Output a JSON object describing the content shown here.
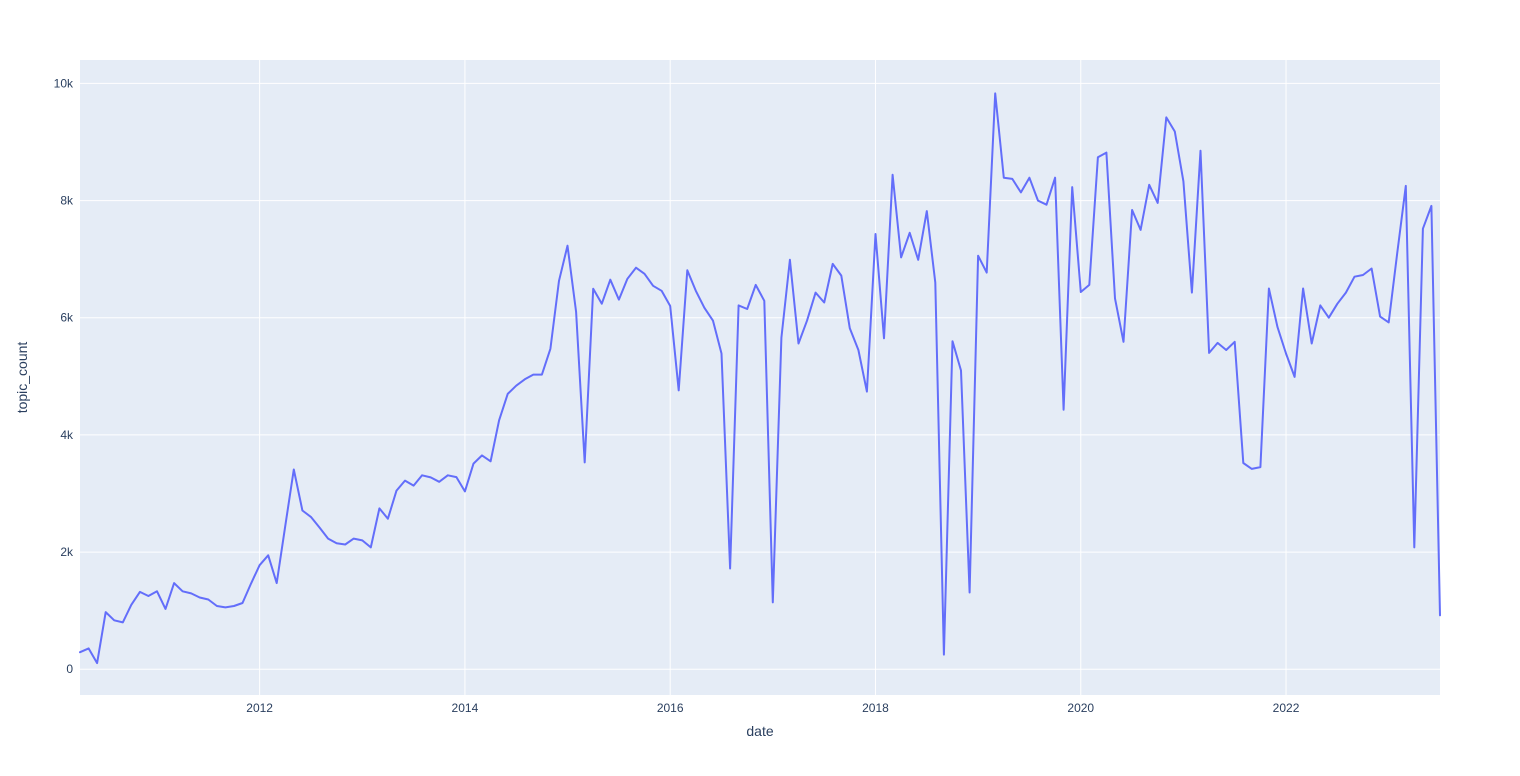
{
  "page": {
    "background_color": "#ffffff"
  },
  "chart_data": {
    "type": "line",
    "title": "",
    "xlabel": "date",
    "ylabel": "topic_count",
    "legend": "none",
    "grid": "on",
    "plot_bg_color": "#e5ecf6",
    "grid_color": "#ffffff",
    "line_color": "#636efa",
    "text_color": "#2a3f5f",
    "line_width": 2,
    "x_axis": {
      "tick_years": [
        2012,
        2014,
        2016,
        2018,
        2020,
        2022
      ],
      "tick_labels": [
        "2012",
        "2014",
        "2016",
        "2018",
        "2020",
        "2022"
      ],
      "range_decimal_years": [
        2010.25,
        2023.5
      ]
    },
    "y_axis": {
      "tick_values": [
        0,
        2000,
        4000,
        6000,
        8000,
        10000
      ],
      "tick_labels": [
        "0",
        "2k",
        "4k",
        "6k",
        "8k",
        "10k"
      ],
      "range": [
        -440,
        10400
      ]
    },
    "cadence": "monthly",
    "x_start": "2010-04",
    "x_end": "2023-07",
    "series_by_year": [
      {
        "year": 2010,
        "first_month": 4,
        "values": [
          290,
          355,
          105,
          975,
          835,
          800,
          1100,
          1320,
          1250
        ]
      },
      {
        "year": 2011,
        "first_month": 1,
        "values": [
          1330,
          1030,
          1470,
          1330,
          1295,
          1225,
          1190,
          1080,
          1055,
          1080,
          1130,
          1465
        ]
      },
      {
        "year": 2012,
        "first_month": 1,
        "values": [
          1775,
          1945,
          1470,
          2450,
          3410,
          2710,
          2600,
          2420,
          2230,
          2150,
          2130,
          2230
        ]
      },
      {
        "year": 2013,
        "first_month": 1,
        "values": [
          2200,
          2080,
          2745,
          2570,
          3050,
          3220,
          3135,
          3310,
          3275,
          3200,
          3310,
          3280
        ]
      },
      {
        "year": 2014,
        "first_month": 1,
        "values": [
          3035,
          3510,
          3650,
          3550,
          4250,
          4700,
          4840,
          4950,
          5030,
          5030,
          5470,
          6630
        ]
      },
      {
        "year": 2015,
        "first_month": 1,
        "values": [
          7230,
          6100,
          3530,
          6495,
          6240,
          6650,
          6310,
          6665,
          6855,
          6750,
          6545,
          6460
        ]
      },
      {
        "year": 2016,
        "first_month": 1,
        "values": [
          6200,
          4760,
          6810,
          6460,
          6170,
          5950,
          5390,
          1720,
          6210,
          6150,
          6560,
          6290
        ]
      },
      {
        "year": 2017,
        "first_month": 1,
        "values": [
          1140,
          5660,
          6990,
          5560,
          5950,
          6430,
          6260,
          6920,
          6720,
          5820,
          5450,
          4740
        ]
      },
      {
        "year": 2018,
        "first_month": 1,
        "values": [
          7430,
          5650,
          8440,
          7030,
          7450,
          6990,
          7820,
          6600,
          250,
          5600,
          5100,
          1310
        ]
      },
      {
        "year": 2019,
        "first_month": 1,
        "values": [
          7060,
          6770,
          9830,
          8390,
          8370,
          8140,
          8390,
          8000,
          7930,
          8390,
          4430,
          8230
        ]
      },
      {
        "year": 2020,
        "first_month": 1,
        "values": [
          6440,
          6560,
          8740,
          8820,
          6330,
          5590,
          7840,
          7500,
          8270,
          7960,
          9420,
          9180
        ]
      },
      {
        "year": 2021,
        "first_month": 1,
        "values": [
          8330,
          6430,
          8850,
          5400,
          5570,
          5450,
          5590,
          3520,
          3420,
          3450,
          6500,
          5840
        ]
      },
      {
        "year": 2022,
        "first_month": 1,
        "values": [
          5390,
          4990,
          6500,
          5560,
          6210,
          6000,
          6240,
          6430,
          6700,
          6730,
          6840,
          6020
        ]
      },
      {
        "year": 2023,
        "first_month": 1,
        "values": [
          5920,
          7100,
          8250,
          2080,
          7520,
          7910,
          920
        ]
      }
    ]
  }
}
